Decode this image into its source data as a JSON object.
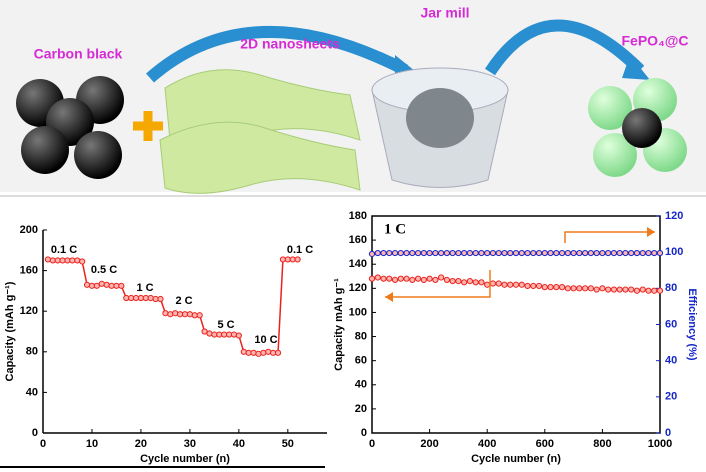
{
  "schematic": {
    "labels": [
      "Carbon black",
      "2D nanosheets",
      "Jar mill",
      "FePO₄@C"
    ]
  },
  "chart_data": [
    {
      "type": "line",
      "x_label": "Cycle number (n)",
      "y_label": "Capacity (mAh g⁻¹)",
      "xlim": [
        0,
        58
      ],
      "xticks": [
        0,
        10,
        20,
        30,
        40,
        50
      ],
      "ylim": [
        0,
        200
      ],
      "yticks": [
        0,
        40,
        80,
        120,
        160,
        200
      ],
      "annotations": [
        "0.1 C",
        "0.5 C",
        "1 C",
        "2 C",
        "5 C",
        "10 C",
        "0.1 C"
      ],
      "x": [
        1,
        2,
        3,
        4,
        5,
        6,
        7,
        8,
        9,
        10,
        11,
        12,
        13,
        14,
        15,
        16,
        17,
        18,
        19,
        20,
        21,
        22,
        23,
        24,
        25,
        26,
        27,
        28,
        29,
        30,
        31,
        32,
        33,
        34,
        35,
        36,
        37,
        38,
        39,
        40,
        41,
        42,
        43,
        44,
        45,
        46,
        47,
        48,
        49,
        50,
        51,
        52
      ],
      "series": [
        {
          "color": "#e8231e",
          "values": [
            171,
            170,
            170,
            170,
            170,
            170,
            170,
            169,
            146,
            145,
            145,
            147,
            146,
            145,
            145,
            145,
            133,
            133,
            133,
            133,
            133,
            133,
            132,
            132,
            118,
            117,
            118,
            117,
            117,
            117,
            116,
            116,
            100,
            98,
            97,
            97,
            97,
            97,
            97,
            96,
            80,
            79,
            79,
            78,
            79,
            80,
            79,
            79,
            171,
            171,
            171,
            171
          ]
        }
      ]
    },
    {
      "type": "line",
      "x_label": "Cycle number (n)",
      "y_label": "Capacity mAh g⁻¹",
      "y2_label": "Efficiency (%)",
      "label": "1 C",
      "xlim": [
        0,
        1000
      ],
      "xticks": [
        0,
        200,
        400,
        600,
        800,
        1000
      ],
      "ylim": [
        0,
        180
      ],
      "yticks": [
        0,
        20,
        40,
        60,
        80,
        100,
        120,
        140,
        160,
        180
      ],
      "y2lim": [
        0,
        120
      ],
      "y2ticks": [
        0,
        20,
        40,
        60,
        80,
        100,
        120
      ],
      "x": [
        0,
        20,
        40,
        60,
        80,
        100,
        120,
        140,
        160,
        180,
        200,
        220,
        240,
        260,
        280,
        300,
        320,
        340,
        360,
        380,
        400,
        420,
        440,
        460,
        480,
        500,
        520,
        540,
        560,
        580,
        600,
        620,
        640,
        660,
        680,
        700,
        720,
        740,
        760,
        780,
        800,
        820,
        840,
        860,
        880,
        900,
        920,
        940,
        960,
        980,
        1000
      ],
      "series": [
        {
          "color": "#e8231e",
          "values": [
            128,
            129,
            128,
            128,
            127,
            128,
            128,
            127,
            128,
            127,
            128,
            127,
            129,
            127,
            126,
            126,
            125,
            126,
            125,
            125,
            123,
            124,
            124,
            123,
            123,
            123,
            123,
            122,
            122,
            122,
            121,
            121,
            121,
            121,
            120,
            120,
            120,
            120,
            120,
            119,
            120,
            119,
            119,
            119,
            119,
            119,
            118,
            119,
            118,
            118,
            118
          ]
        },
        {
          "color": "#1426c8",
          "axis": "y2",
          "values": [
            99,
            99.5,
            99.5,
            99.5,
            99.5,
            99.5,
            99.5,
            99.5,
            99.5,
            99.5,
            99.5,
            99.5,
            99.5,
            99.5,
            99.5,
            99.5,
            99.5,
            99.5,
            99.5,
            99.5,
            99.5,
            99.5,
            99.5,
            99.5,
            99.5,
            99.5,
            99.5,
            99.5,
            99.5,
            99.5,
            99.5,
            99.5,
            99.5,
            99.5,
            99.5,
            99.5,
            99.5,
            99.5,
            99.5,
            99.5,
            99.5,
            99.5,
            99.5,
            99.5,
            99.5,
            99.5,
            99.5,
            99.5,
            99.5,
            99.5,
            99.5
          ]
        }
      ]
    }
  ]
}
